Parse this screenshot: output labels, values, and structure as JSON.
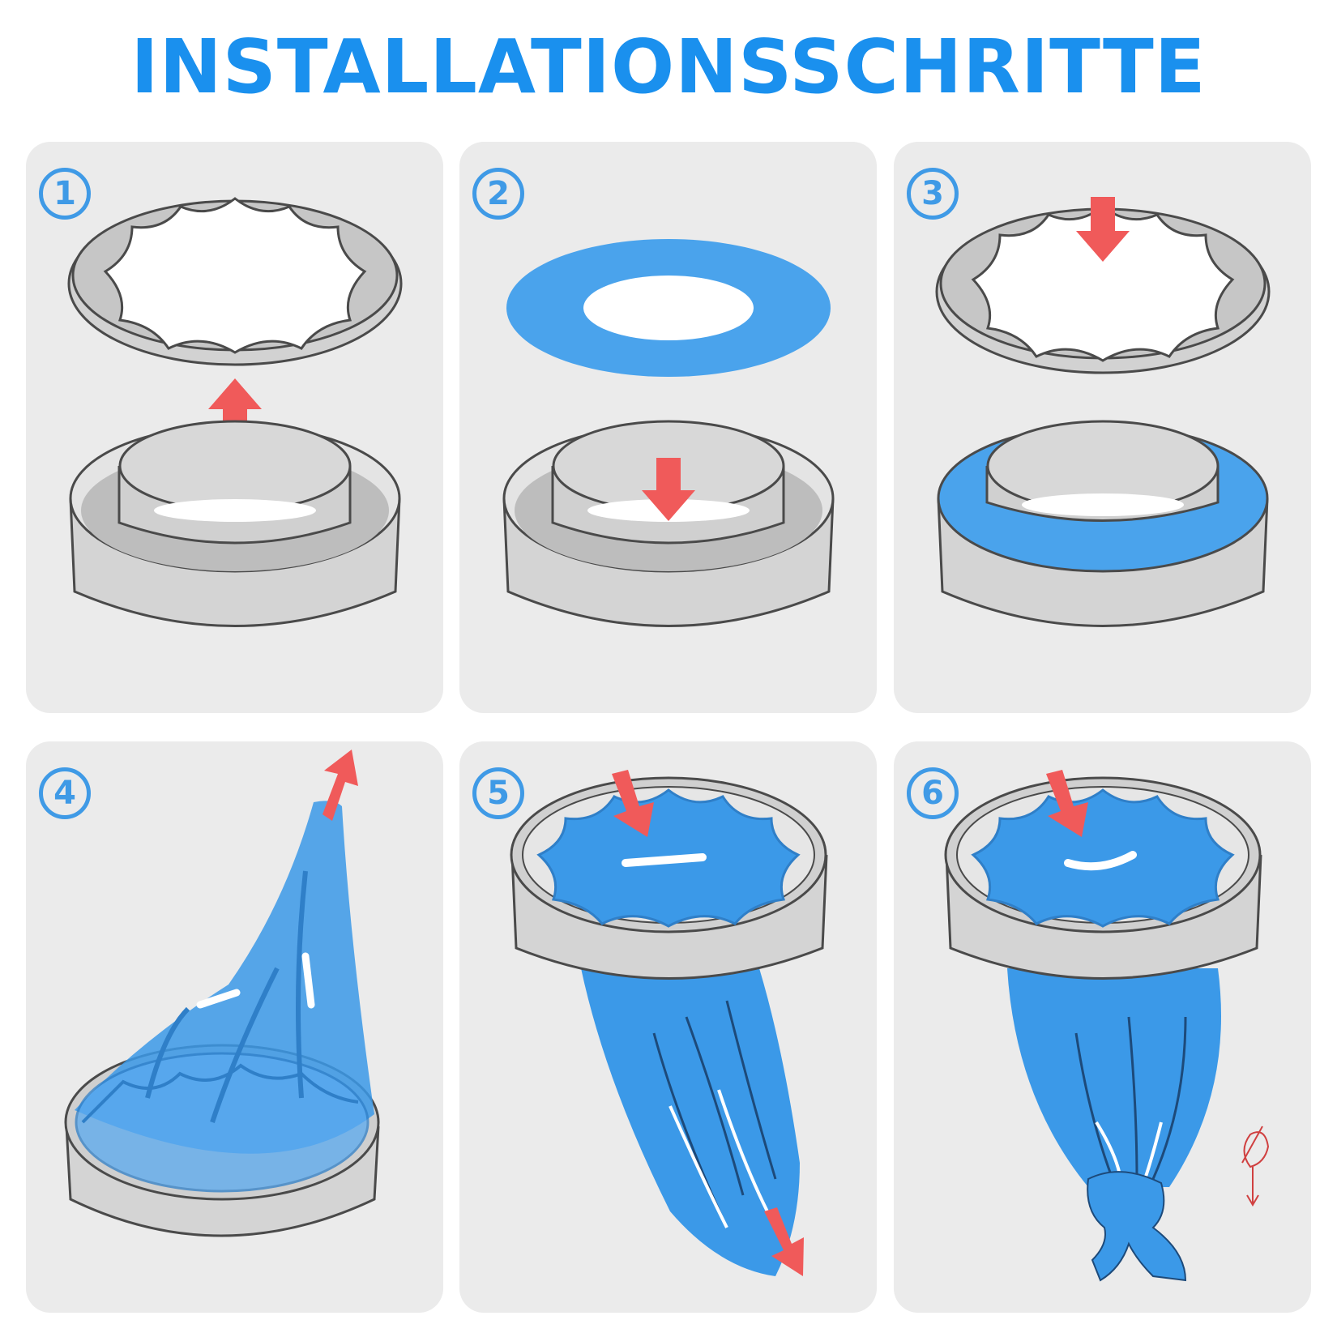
{
  "header": {
    "title": "INSTALLATIONSSCHRITTE"
  },
  "colors": {
    "title": "#1a90ee",
    "badge": "#3f9ae6",
    "panel_bg": "#ebebeb",
    "ring_gray": "#c9c9c9",
    "outline": "#4a4a4a",
    "bag_blue": "#2e8fe6",
    "arrow_red": "#f05a5a"
  },
  "steps": [
    {
      "number": "1",
      "icon": "lid-lift-icon"
    },
    {
      "number": "2",
      "icon": "seal-ring-insert-icon"
    },
    {
      "number": "3",
      "icon": "lid-press-icon"
    },
    {
      "number": "4",
      "icon": "bag-pull-icon"
    },
    {
      "number": "5",
      "icon": "bag-through-lid-icon"
    },
    {
      "number": "6",
      "icon": "bag-knot-icon"
    }
  ]
}
